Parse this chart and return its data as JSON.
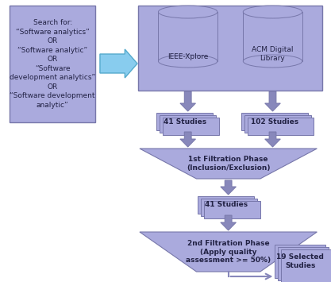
{
  "bg_color": "#ffffff",
  "box_color": "#aaaadd",
  "box_color_light": "#bbbbee",
  "box_edge_color": "#7777aa",
  "arrow_fill": "#88ccee",
  "arrow_edge": "#55aacc",
  "arrow_dark": "#8888bb",
  "search_text": "Search for:\n“Software analytics”\nOR\n“Software analytic”\nOR\n“Software\ndevelopment analytics”\nOR\n“Software development\nanalytic”",
  "ieee_label": "IEEE-Xplore",
  "acm_label": "ACM Digital\nLibrary",
  "filtration1_text": "1st Filtration Phase\n(Inclusion/Exclusion)",
  "filtration2_text": "2nd Filtration Phase\n(Apply quality\nassessment >= 50%)",
  "final_text": "19 Selected\nStudies",
  "font_color": "#222244",
  "fontsize_main": 6.5
}
